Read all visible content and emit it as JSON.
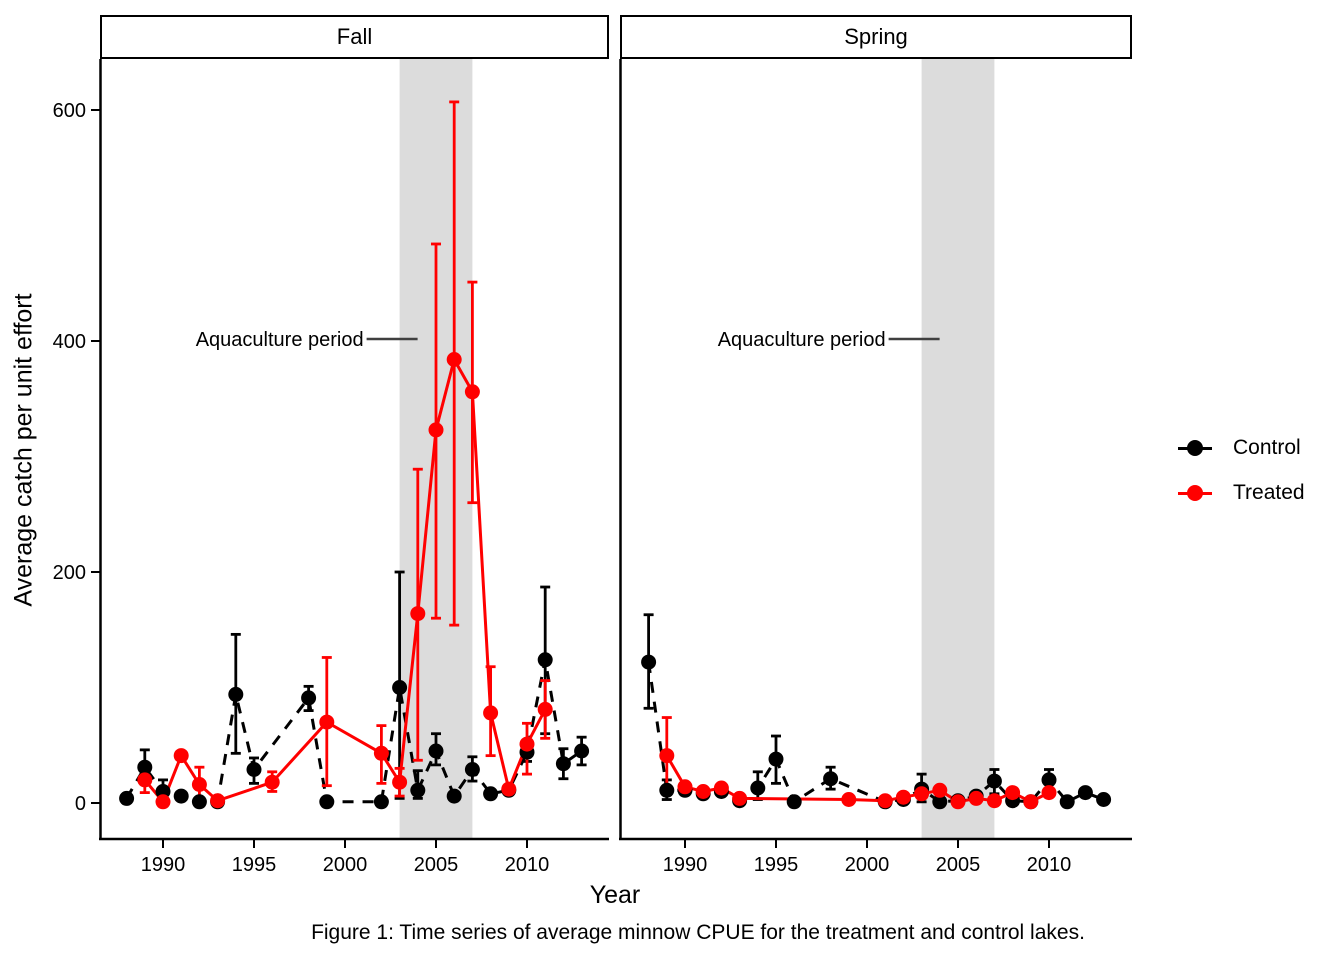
{
  "figure": {
    "caption": "Figure 1: Time series of average minnow CPUE for the treatment and control lakes.",
    "x_axis_title": "Year",
    "y_axis_title": "Average catch per unit effort"
  },
  "legend": {
    "items": [
      {
        "label": "Control",
        "color": "#000000"
      },
      {
        "label": "Treated",
        "color": "#FF0000"
      }
    ]
  },
  "chart_data": {
    "type": "line",
    "title": "",
    "xlabel": "Year",
    "ylabel": "Average catch per unit effort",
    "x_ticks": [
      1990,
      1995,
      2000,
      2005,
      2010
    ],
    "y_ticks": [
      0,
      200,
      400,
      600
    ],
    "x_range": [
      1986.5,
      2014.5
    ],
    "ylim": [
      0,
      600
    ],
    "grid": false,
    "legend_position": "right",
    "annotation_color": "#404040",
    "shaded_region": {
      "label": "Aquaculture period",
      "x_start": 2003,
      "x_end": 2007,
      "color": "#DCDCDC"
    },
    "facets": [
      {
        "label": "Fall",
        "series": [
          {
            "name": "Control",
            "color": "#000000",
            "dashed": true,
            "points": [
              [
                1988,
                4,
                null,
                null
              ],
              [
                1989,
                31,
                17,
                46
              ],
              [
                1990,
                10,
                1,
                20
              ],
              [
                1991,
                6,
                null,
                null
              ],
              [
                1992,
                1,
                null,
                null
              ],
              [
                1993,
                1,
                null,
                null
              ],
              [
                1994,
                94,
                43,
                146
              ],
              [
                1995,
                29,
                17,
                39
              ],
              [
                1998,
                91,
                80,
                101
              ],
              [
                1999,
                1,
                null,
                null
              ],
              [
                2002,
                1,
                null,
                null
              ],
              [
                2003,
                100,
                4,
                200
              ],
              [
                2004,
                11,
                4,
                28
              ],
              [
                2005,
                45,
                33,
                60
              ],
              [
                2006,
                6,
                null,
                null
              ],
              [
                2007,
                29,
                19,
                40
              ],
              [
                2008,
                8,
                null,
                null
              ],
              [
                2009,
                11,
                null,
                null
              ],
              [
                2010,
                44,
                36,
                53
              ],
              [
                2011,
                124,
                60,
                187
              ],
              [
                2012,
                34,
                21,
                47
              ],
              [
                2013,
                45,
                33,
                57
              ]
            ]
          },
          {
            "name": "Treated",
            "color": "#FF0000",
            "dashed": false,
            "points": [
              [
                1989,
                20,
                9,
                31
              ],
              [
                1990,
                1,
                null,
                null
              ],
              [
                1991,
                41,
                null,
                null
              ],
              [
                1992,
                16,
                1,
                31
              ],
              [
                1993,
                2,
                null,
                null
              ],
              [
                1996,
                18,
                10,
                27
              ],
              [
                1999,
                70,
                15,
                126
              ],
              [
                2002,
                43,
                17,
                67
              ],
              [
                2003,
                18,
                6,
                30
              ],
              [
                2004,
                164,
                37,
                289
              ],
              [
                2005,
                323,
                160,
                484
              ],
              [
                2006,
                384,
                154,
                607
              ],
              [
                2007,
                356,
                260,
                451
              ],
              [
                2008,
                78,
                41,
                118
              ],
              [
                2009,
                12,
                null,
                null
              ],
              [
                2010,
                51,
                25,
                69
              ],
              [
                2011,
                81,
                56,
                106
              ]
            ]
          }
        ]
      },
      {
        "label": "Spring",
        "series": [
          {
            "name": "Control",
            "color": "#000000",
            "dashed": true,
            "points": [
              [
                1988,
                122,
                82,
                163
              ],
              [
                1989,
                11,
                3,
                20
              ],
              [
                1990,
                11,
                null,
                null
              ],
              [
                1991,
                8,
                null,
                null
              ],
              [
                1992,
                10,
                null,
                null
              ],
              [
                1993,
                2,
                null,
                null
              ],
              [
                1994,
                13,
                3,
                27
              ],
              [
                1995,
                38,
                17,
                58
              ],
              [
                1996,
                1,
                null,
                null
              ],
              [
                1998,
                21,
                12,
                31
              ],
              [
                2001,
                1,
                null,
                null
              ],
              [
                2002,
                3,
                null,
                null
              ],
              [
                2003,
                12,
                1,
                25
              ],
              [
                2004,
                1,
                null,
                null
              ],
              [
                2005,
                2,
                null,
                null
              ],
              [
                2006,
                6,
                null,
                null
              ],
              [
                2007,
                19,
                8,
                29
              ],
              [
                2008,
                2,
                null,
                null
              ],
              [
                2009,
                1,
                null,
                null
              ],
              [
                2010,
                20,
                10,
                29
              ],
              [
                2011,
                1,
                null,
                null
              ],
              [
                2012,
                9,
                null,
                null
              ],
              [
                2013,
                3,
                null,
                null
              ]
            ]
          },
          {
            "name": "Treated",
            "color": "#FF0000",
            "dashed": false,
            "points": [
              [
                1989,
                41,
                9,
                74
              ],
              [
                1990,
                14,
                null,
                null
              ],
              [
                1991,
                10,
                null,
                null
              ],
              [
                1992,
                13,
                null,
                null
              ],
              [
                1993,
                4,
                null,
                null
              ],
              [
                1999,
                3,
                null,
                null
              ],
              [
                2001,
                2,
                null,
                null
              ],
              [
                2002,
                5,
                null,
                null
              ],
              [
                2003,
                8,
                null,
                null
              ],
              [
                2004,
                11,
                null,
                null
              ],
              [
                2005,
                1,
                null,
                null
              ],
              [
                2006,
                4,
                null,
                null
              ],
              [
                2007,
                2,
                null,
                null
              ],
              [
                2008,
                9,
                null,
                null
              ],
              [
                2009,
                1,
                null,
                null
              ],
              [
                2010,
                9,
                null,
                null
              ]
            ]
          }
        ]
      }
    ]
  }
}
